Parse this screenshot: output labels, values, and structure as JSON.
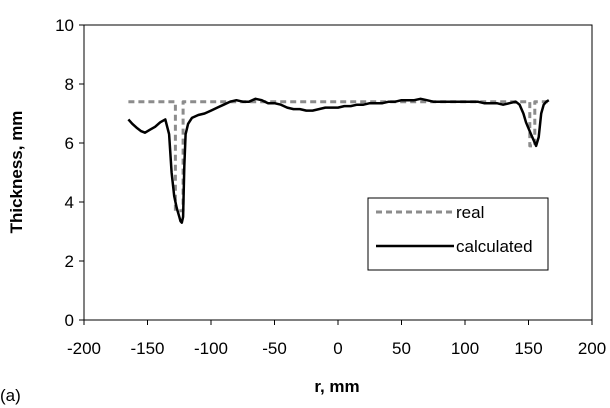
{
  "panel_label": "(a)",
  "chart_data": {
    "type": "line",
    "xlabel": "r, mm",
    "ylabel": "Thickness, mm",
    "xlim": [
      -200,
      200
    ],
    "ylim": [
      0,
      10
    ],
    "x_ticks": [
      "-200",
      "-150",
      "-100",
      "-50",
      "0",
      "50",
      "100",
      "150",
      "200"
    ],
    "y_ticks": [
      "0",
      "2",
      "4",
      "6",
      "8",
      "10"
    ],
    "grid": false,
    "legend_position": "lower-right",
    "series": [
      {
        "name": "real",
        "style": "dashed",
        "color": "#8c8c8c",
        "x": [
          -165,
          -128,
          -128,
          -126,
          -124,
          -124,
          -122,
          -122,
          151,
          151,
          153,
          155,
          155,
          166
        ],
        "y": [
          7.4,
          7.4,
          3.7,
          3.7,
          3.7,
          3.7,
          3.7,
          7.4,
          7.4,
          5.9,
          5.9,
          5.9,
          7.4,
          7.4
        ]
      },
      {
        "name": "calculated",
        "style": "solid",
        "color": "#000000",
        "x": [
          -165,
          -162,
          -158,
          -155,
          -152,
          -148,
          -144,
          -140,
          -136,
          -133,
          -131,
          -129,
          -127,
          -125,
          -124,
          -123,
          -122,
          -121,
          -120,
          -118,
          -115,
          -110,
          -105,
          -100,
          -95,
          -90,
          -85,
          -80,
          -75,
          -70,
          -65,
          -60,
          -55,
          -50,
          -45,
          -40,
          -35,
          -30,
          -25,
          -20,
          -15,
          -10,
          -5,
          0,
          5,
          10,
          15,
          20,
          25,
          30,
          35,
          40,
          45,
          50,
          55,
          60,
          65,
          70,
          75,
          80,
          85,
          90,
          95,
          100,
          105,
          110,
          115,
          120,
          125,
          130,
          135,
          140,
          143,
          146,
          148,
          150,
          152,
          154,
          156,
          158,
          160,
          162,
          164,
          166
        ],
        "y": [
          6.8,
          6.65,
          6.5,
          6.4,
          6.35,
          6.45,
          6.55,
          6.7,
          6.8,
          6.3,
          5.0,
          4.2,
          3.8,
          3.5,
          3.35,
          3.3,
          3.5,
          5.2,
          6.3,
          6.65,
          6.85,
          6.95,
          7.0,
          7.1,
          7.2,
          7.3,
          7.4,
          7.45,
          7.4,
          7.4,
          7.5,
          7.45,
          7.35,
          7.35,
          7.3,
          7.2,
          7.15,
          7.15,
          7.1,
          7.1,
          7.15,
          7.2,
          7.2,
          7.2,
          7.25,
          7.25,
          7.3,
          7.3,
          7.35,
          7.35,
          7.35,
          7.4,
          7.4,
          7.45,
          7.45,
          7.45,
          7.5,
          7.45,
          7.4,
          7.4,
          7.4,
          7.4,
          7.4,
          7.4,
          7.4,
          7.4,
          7.35,
          7.35,
          7.35,
          7.3,
          7.35,
          7.4,
          7.3,
          7.0,
          6.7,
          6.5,
          6.3,
          6.1,
          5.9,
          6.2,
          7.0,
          7.3,
          7.4,
          7.45
        ]
      }
    ]
  }
}
